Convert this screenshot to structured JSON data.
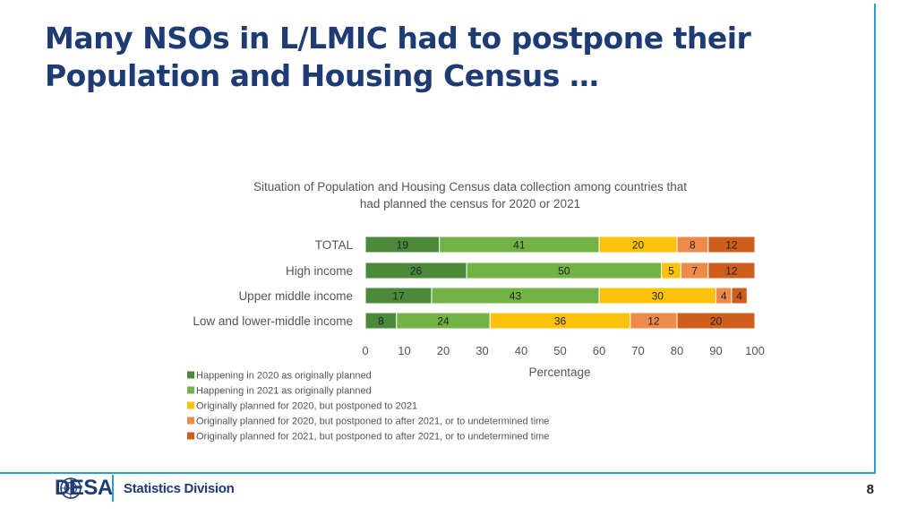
{
  "slide": {
    "title_line1": "Many NSOs in L/LMIC had to postpone their",
    "title_line2": "Population and Housing Census …"
  },
  "footer": {
    "logo_text": "DESA",
    "division": "Statistics Division",
    "page_number": "8"
  },
  "colors": {
    "accent_line": "#2a9fd6",
    "title": "#1f3b73"
  },
  "chart_data": {
    "type": "bar",
    "orientation": "horizontal",
    "stacked": true,
    "title_line1": "Situation of Population and Housing Census data collection among countries that",
    "title_line2": "had planned the census for 2020 or 2021",
    "xlabel": "Percentage",
    "ylabel": "",
    "xlim": [
      0,
      100
    ],
    "x_ticks": [
      0,
      10,
      20,
      30,
      40,
      50,
      60,
      70,
      80,
      90,
      100
    ],
    "categories": [
      "TOTAL",
      "High income",
      "Upper middle income",
      "Low and lower-middle income"
    ],
    "series": [
      {
        "name": "Happening in 2020 as originally planned",
        "color": "#4a8a3a",
        "values": [
          19,
          26,
          17,
          8
        ]
      },
      {
        "name": "Happening in 2021 as originally planned",
        "color": "#72b246",
        "values": [
          41,
          50,
          43,
          24
        ]
      },
      {
        "name": "Originally planned for 2020, but postponed to 2021",
        "color": "#fbc20a",
        "values": [
          20,
          5,
          30,
          36
        ]
      },
      {
        "name": "Originally planned for 2020, but postponed to after 2021, or to undetermined time",
        "color": "#ee8a4a",
        "values": [
          8,
          7,
          4,
          12
        ]
      },
      {
        "name": "Originally planned for 2021, but postponed to after 2021, or to undetermined time",
        "color": "#cf5e1c",
        "values": [
          12,
          12,
          4,
          20
        ]
      }
    ],
    "legend_position": "bottom-left",
    "grid": false
  }
}
